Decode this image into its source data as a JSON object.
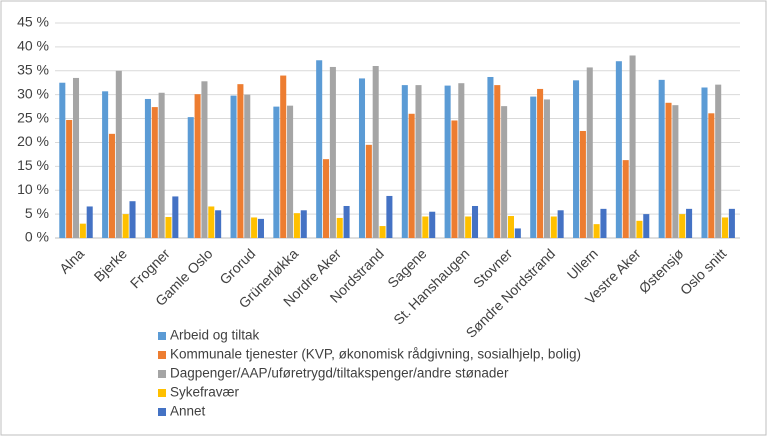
{
  "chart_data": {
    "type": "bar",
    "categories": [
      "Alna",
      "Bjerke",
      "Frogner",
      "Gamle Oslo",
      "Grorud",
      "Grünerløkka",
      "Nordre Aker",
      "Nordstrand",
      "Sagene",
      "St. Hanshaugen",
      "Stovner",
      "Søndre Nordstrand",
      "Ullern",
      "Vestre Aker",
      "Østensjø",
      "Oslo snitt"
    ],
    "series": [
      {
        "name": "Arbeid og tiltak",
        "color": "#5b9bd5",
        "values": [
          32.5,
          30.7,
          29.1,
          25.3,
          29.8,
          27.5,
          37.2,
          33.4,
          32,
          31.9,
          33.7,
          29.6,
          33,
          37,
          33.1,
          31.5
        ]
      },
      {
        "name": "Kommunale tjenester (KVP, økonomisk rådgivning, sosialhjelp, bolig)",
        "color": "#ed7d31",
        "values": [
          24.7,
          21.8,
          27.4,
          30.1,
          32.2,
          34,
          16.5,
          19.5,
          26,
          24.6,
          32,
          31.2,
          22.4,
          16.3,
          28.3,
          26.1
        ]
      },
      {
        "name": "Dagpenger/AAP/uføretrygd/tiltakspenger/andre stønader",
        "color": "#a5a5a5",
        "values": [
          33.5,
          35,
          30.4,
          32.8,
          30,
          27.7,
          35.8,
          36,
          32,
          32.4,
          27.6,
          29,
          35.7,
          38.2,
          27.8,
          32.1
        ]
      },
      {
        "name": "Sykefravær",
        "color": "#ffc000",
        "values": [
          3,
          5,
          4.4,
          6.6,
          4.3,
          5.2,
          4.2,
          2.5,
          4.5,
          4.5,
          4.6,
          4.5,
          2.9,
          3.6,
          5,
          4.3
        ]
      },
      {
        "name": "Annet",
        "color": "#4472c4",
        "values": [
          6.6,
          7.7,
          8.7,
          5.8,
          4,
          5.8,
          6.7,
          8.8,
          5.5,
          6.7,
          2,
          5.8,
          6.1,
          5,
          6.1,
          6.1
        ]
      }
    ],
    "ylim": [
      0,
      45
    ],
    "yticks": [
      {
        "value": 0,
        "label": "0 %"
      },
      {
        "value": 5,
        "label": "5 %"
      },
      {
        "value": 10,
        "label": "10 %"
      },
      {
        "value": 15,
        "label": "15 %"
      },
      {
        "value": 20,
        "label": "20 %"
      },
      {
        "value": 25,
        "label": "25 %"
      },
      {
        "value": 30,
        "label": "30 %"
      },
      {
        "value": 35,
        "label": "35 %"
      },
      {
        "value": 40,
        "label": "40 %"
      },
      {
        "value": 45,
        "label": "45 %"
      }
    ],
    "grid": true
  }
}
